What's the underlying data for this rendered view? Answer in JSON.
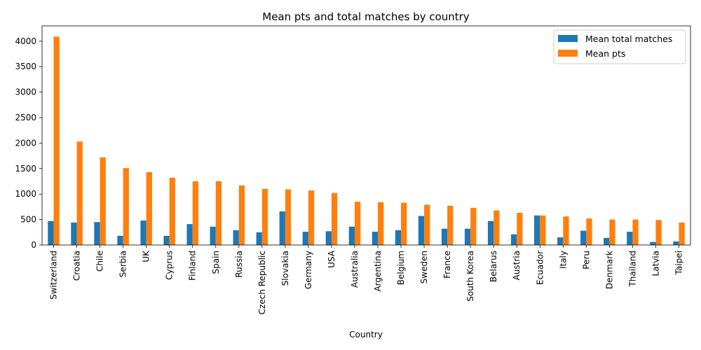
{
  "chart_data": {
    "type": "bar",
    "title": "Mean pts and total matches by country",
    "xlabel": "Country",
    "ylabel": "",
    "ylim": [
      0,
      4300
    ],
    "yticks": [
      0,
      500,
      1000,
      1500,
      2000,
      2500,
      3000,
      3500,
      4000
    ],
    "grid": false,
    "legend_position": "top-right",
    "categories": [
      "Switzerland",
      "Croatia",
      "Chile",
      "Serbia",
      "UK",
      "Cyprus",
      "Finland",
      "Spain",
      "Russia",
      "Czech Republic",
      "Slovakia",
      "Germany",
      "USA",
      "Australia",
      "Argentina",
      "Belgium",
      "Sweden",
      "France",
      "South Korea",
      "Belarus",
      "Austria",
      "Ecuador",
      "Italy",
      "Peru",
      "Denmark",
      "Thailand",
      "Latvia",
      "Taipei"
    ],
    "series": [
      {
        "name": "Mean total matches",
        "color": "#1f77b4",
        "values": [
          470,
          440,
          450,
          180,
          480,
          180,
          410,
          360,
          290,
          250,
          660,
          260,
          270,
          360,
          260,
          290,
          570,
          320,
          320,
          470,
          210,
          580,
          150,
          280,
          140,
          260,
          60,
          70
        ]
      },
      {
        "name": "Mean pts",
        "color": "#ff7f0e",
        "values": [
          4090,
          2030,
          1720,
          1510,
          1430,
          1320,
          1250,
          1250,
          1170,
          1100,
          1090,
          1070,
          1020,
          850,
          840,
          830,
          790,
          770,
          730,
          680,
          630,
          580,
          560,
          520,
          500,
          500,
          490,
          440
        ]
      }
    ]
  }
}
